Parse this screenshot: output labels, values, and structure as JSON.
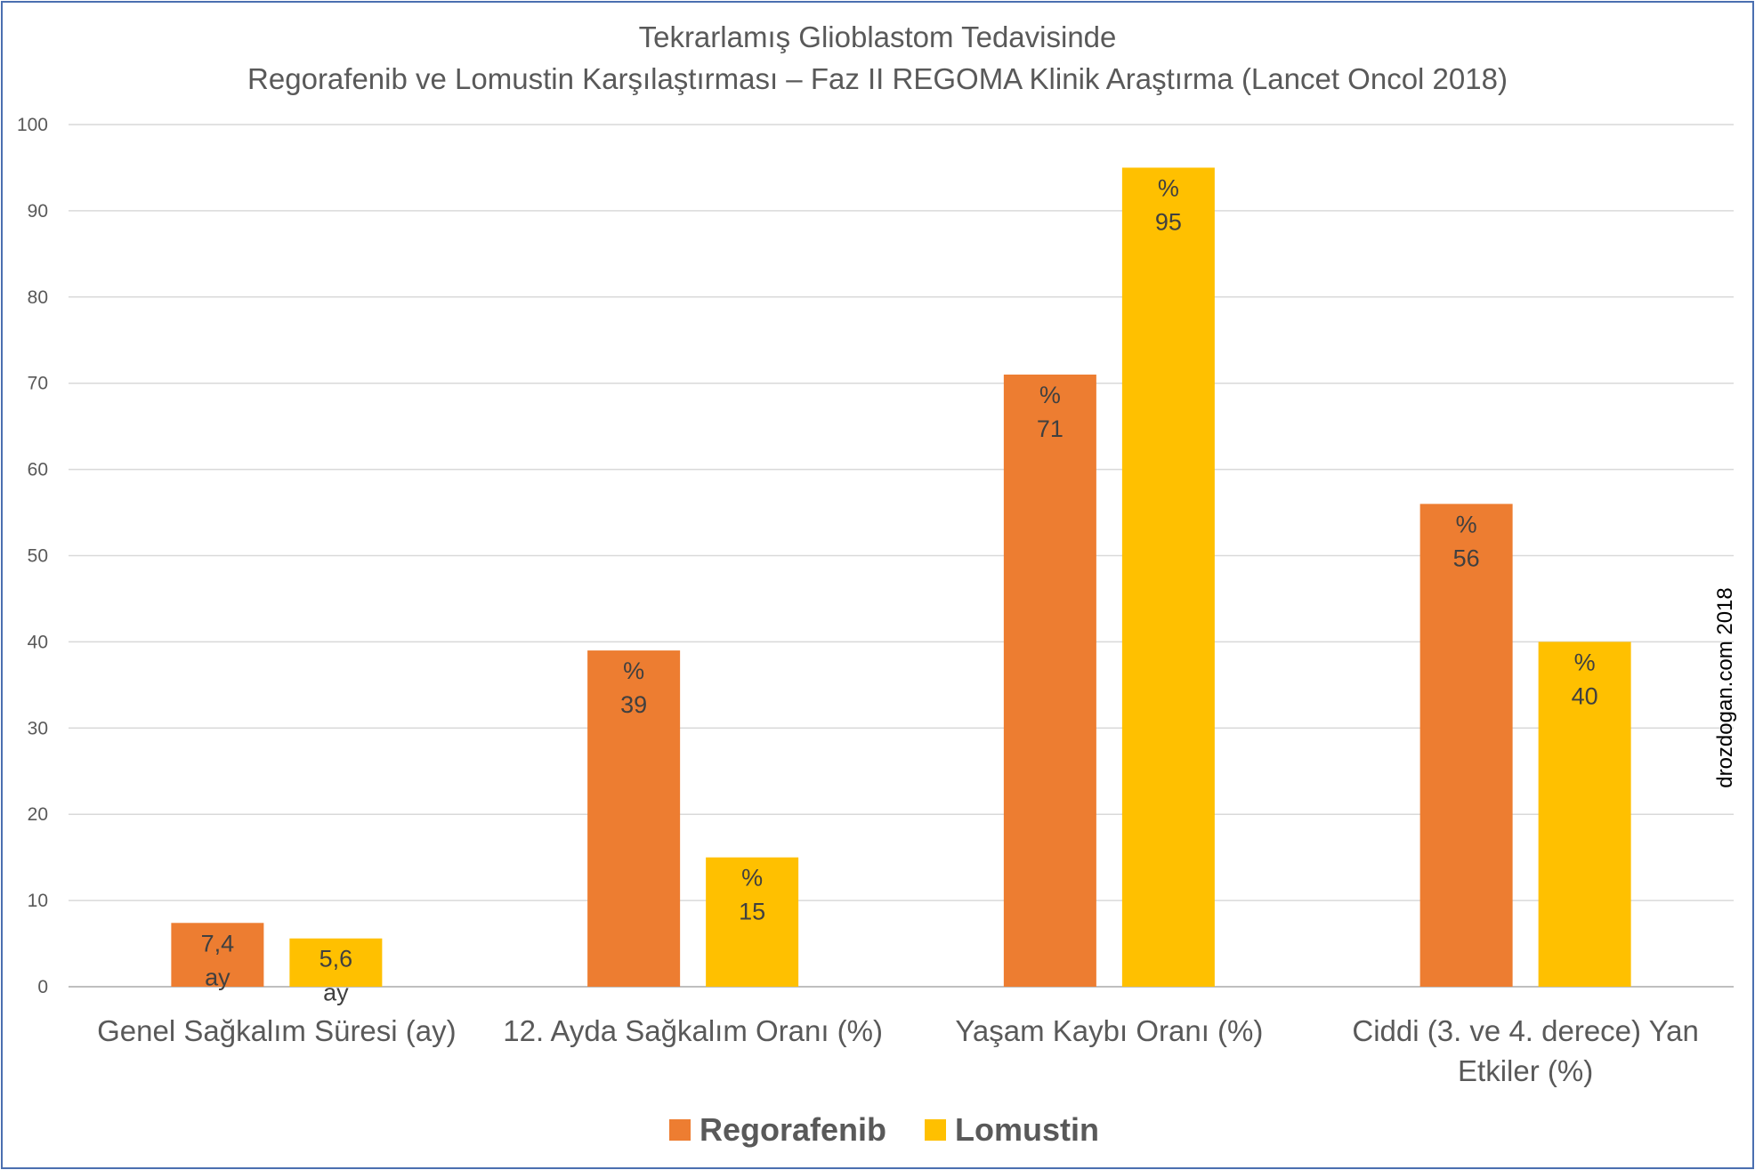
{
  "chart_data": {
    "type": "bar",
    "title": [
      "Tekrarlamış Glioblastom Tedavisinde",
      "Regorafenib ve Lomustin Karşılaştırması – Faz II REGOMA Klinik Araştırma (Lancet Oncol 2018)"
    ],
    "categories": [
      [
        "Genel Sağkalım Süresi (ay)"
      ],
      [
        "12. Ayda Sağkalım Oranı (%)"
      ],
      [
        "Yaşam Kaybı Oranı (%)"
      ],
      [
        "Ciddi (3. ve 4. derece) Yan",
        "Etkiler (%)"
      ]
    ],
    "series": [
      {
        "name": "Regorafenib",
        "color": "#ed7d31",
        "values": [
          7.4,
          39,
          71,
          56
        ],
        "labels": [
          [
            "7,4",
            "ay"
          ],
          [
            "%",
            "39"
          ],
          [
            "%",
            "71"
          ],
          [
            "%",
            "56"
          ]
        ]
      },
      {
        "name": "Lomustin",
        "color": "#ffc000",
        "values": [
          5.6,
          15,
          95,
          40
        ],
        "labels": [
          [
            "5,6",
            "ay"
          ],
          [
            "%",
            "15"
          ],
          [
            "%",
            "95"
          ],
          [
            "%",
            "40"
          ]
        ]
      }
    ],
    "ylim": [
      0,
      100
    ],
    "yticks": [
      0,
      10,
      20,
      30,
      40,
      50,
      60,
      70,
      80,
      90,
      100
    ],
    "xlabel": "",
    "ylabel": "",
    "grid": true,
    "legend_position": "bottom-center",
    "watermark": "drozdogan.com 2018"
  }
}
